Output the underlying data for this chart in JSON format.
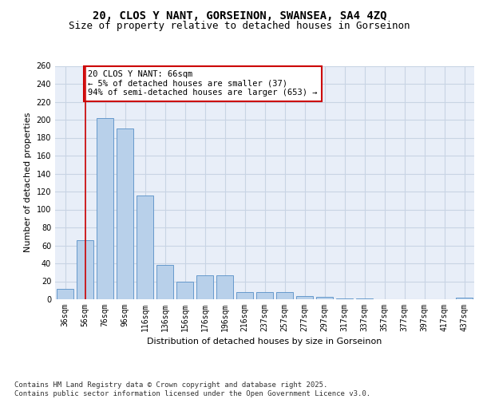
{
  "title_line1": "20, CLOS Y NANT, GORSEINON, SWANSEA, SA4 4ZQ",
  "title_line2": "Size of property relative to detached houses in Gorseinon",
  "xlabel": "Distribution of detached houses by size in Gorseinon",
  "ylabel": "Number of detached properties",
  "categories": [
    "36sqm",
    "56sqm",
    "76sqm",
    "96sqm",
    "116sqm",
    "136sqm",
    "156sqm",
    "176sqm",
    "196sqm",
    "216sqm",
    "237sqm",
    "257sqm",
    "277sqm",
    "297sqm",
    "317sqm",
    "337sqm",
    "357sqm",
    "377sqm",
    "397sqm",
    "417sqm",
    "437sqm"
  ],
  "values": [
    12,
    66,
    202,
    190,
    116,
    38,
    20,
    27,
    27,
    8,
    8,
    8,
    4,
    3,
    1,
    1,
    0,
    0,
    0,
    0,
    2
  ],
  "bar_color": "#b8d0ea",
  "bar_edge_color": "#6699cc",
  "grid_color": "#c8d4e4",
  "bg_color": "#e8eef8",
  "annotation_text": "20 CLOS Y NANT: 66sqm\n← 5% of detached houses are smaller (37)\n94% of semi-detached houses are larger (653) →",
  "annotation_box_color": "#ffffff",
  "annotation_box_edge": "#cc0000",
  "vline_x": 1,
  "vline_color": "#cc0000",
  "ylim": [
    0,
    260
  ],
  "yticks": [
    0,
    20,
    40,
    60,
    80,
    100,
    120,
    140,
    160,
    180,
    200,
    220,
    240,
    260
  ],
  "footer_text": "Contains HM Land Registry data © Crown copyright and database right 2025.\nContains public sector information licensed under the Open Government Licence v3.0.",
  "title_fontsize": 10,
  "subtitle_fontsize": 9,
  "axis_label_fontsize": 8,
  "tick_fontsize": 7,
  "annotation_fontsize": 7.5,
  "footer_fontsize": 6.5
}
